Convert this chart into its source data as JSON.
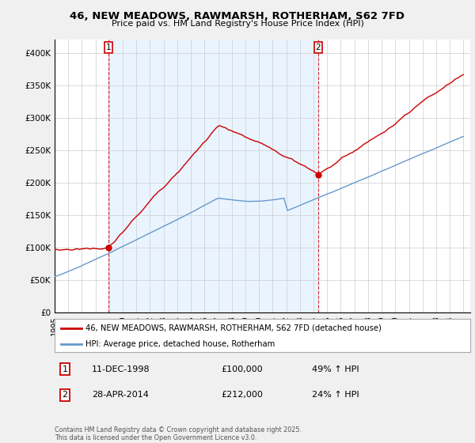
{
  "title": "46, NEW MEADOWS, RAWMARSH, ROTHERHAM, S62 7FD",
  "subtitle": "Price paid vs. HM Land Registry's House Price Index (HPI)",
  "legend_line1": "46, NEW MEADOWS, RAWMARSH, ROTHERHAM, S62 7FD (detached house)",
  "legend_line2": "HPI: Average price, detached house, Rotherham",
  "annotation1_label": "1",
  "annotation1_date": "11-DEC-1998",
  "annotation1_price": "£100,000",
  "annotation1_hpi": "49% ↑ HPI",
  "annotation2_label": "2",
  "annotation2_date": "28-APR-2014",
  "annotation2_price": "£212,000",
  "annotation2_hpi": "24% ↑ HPI",
  "copyright": "Contains HM Land Registry data © Crown copyright and database right 2025.\nThis data is licensed under the Open Government Licence v3.0.",
  "red_color": "#cc0000",
  "blue_color": "#6699cc",
  "shade_color": "#ddeeff",
  "background_color": "#f0f0f0",
  "plot_bg_color": "#ffffff",
  "grid_color": "#cccccc",
  "ylim": [
    0,
    420000
  ],
  "yticks": [
    0,
    50000,
    100000,
    150000,
    200000,
    250000,
    300000,
    350000,
    400000
  ],
  "ytick_labels": [
    "£0",
    "£50K",
    "£100K",
    "£150K",
    "£200K",
    "£250K",
    "£300K",
    "£350K",
    "£400K"
  ],
  "t1": 1998.95,
  "t2": 2014.33,
  "p1": 100000,
  "p2": 212000
}
